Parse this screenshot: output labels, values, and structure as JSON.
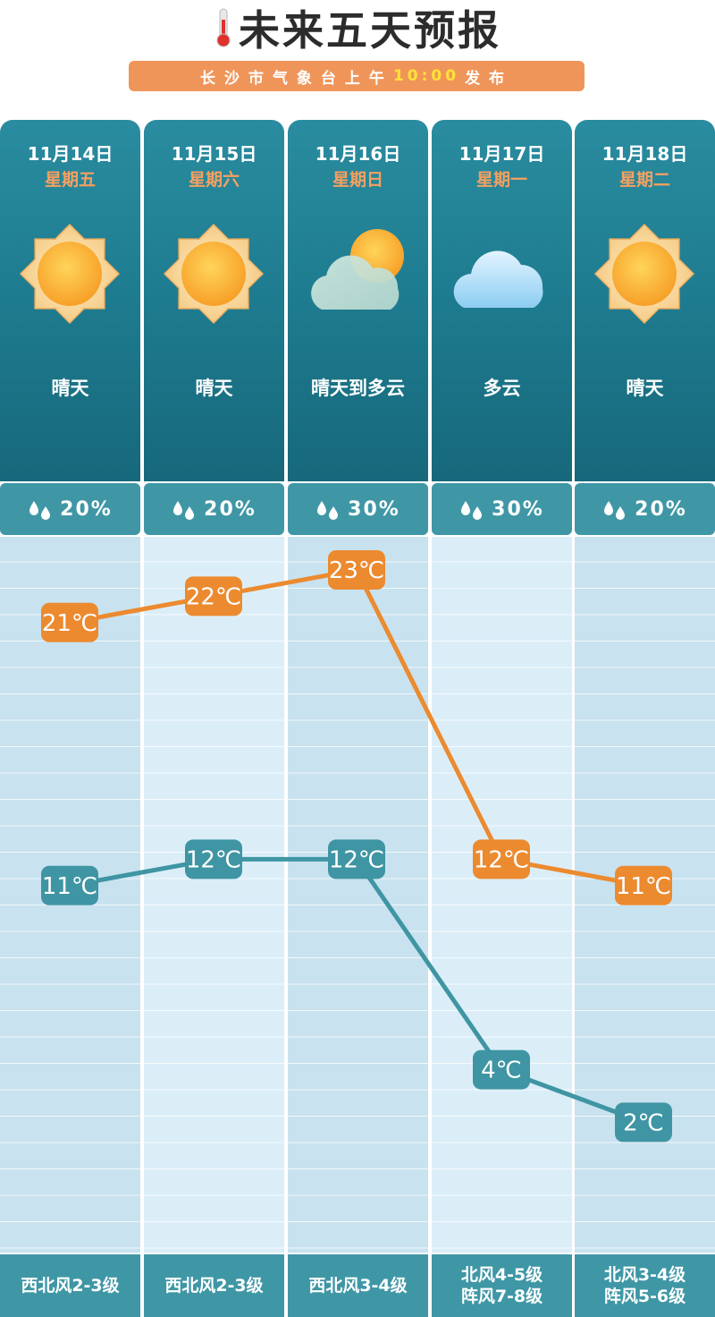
{
  "header": {
    "title": "未来五天预报",
    "subtitle_prefix": "长沙市气象台上午",
    "subtitle_time": "10:00",
    "subtitle_suffix": "发布"
  },
  "days": [
    {
      "date": "11月14日",
      "weekday": "星期五",
      "icon": "sun-icon",
      "condition": "晴天",
      "rain_chance": "20%",
      "wind": [
        "西北风2-3级"
      ]
    },
    {
      "date": "11月15日",
      "weekday": "星期六",
      "icon": "sun-icon",
      "condition": "晴天",
      "rain_chance": "20%",
      "wind": [
        "西北风2-3级"
      ]
    },
    {
      "date": "11月16日",
      "weekday": "星期日",
      "icon": "sun-cloud-icon",
      "condition": "晴天到多云",
      "rain_chance": "30%",
      "wind": [
        "西北风3-4级"
      ]
    },
    {
      "date": "11月17日",
      "weekday": "星期一",
      "icon": "cloud-icon",
      "condition": "多云",
      "rain_chance": "30%",
      "wind": [
        "北风4-5级",
        "阵风7-8级"
      ]
    },
    {
      "date": "11月18日",
      "weekday": "星期二",
      "icon": "sun-icon",
      "condition": "晴天",
      "rain_chance": "20%",
      "wind": [
        "北风3-4级",
        "阵风5-6级"
      ]
    }
  ],
  "chart_data": {
    "type": "line",
    "categories": [
      "11月14日",
      "11月15日",
      "11月16日",
      "11月17日",
      "11月18日"
    ],
    "series": [
      {
        "name": "",
        "values": [
          21,
          22,
          23,
          12,
          11
        ],
        "color": "#ec8a2f"
      },
      {
        "name": "",
        "values": [
          11,
          12,
          12,
          4,
          2
        ],
        "color": "#3f95a3"
      }
    ],
    "unit": "℃"
  },
  "colors": {
    "card_top": "#2a8ca0",
    "card_bottom": "#17687b",
    "accent_orange": "#f0955a",
    "high_line": "#ec8a2f",
    "low_line": "#3f95a3"
  }
}
